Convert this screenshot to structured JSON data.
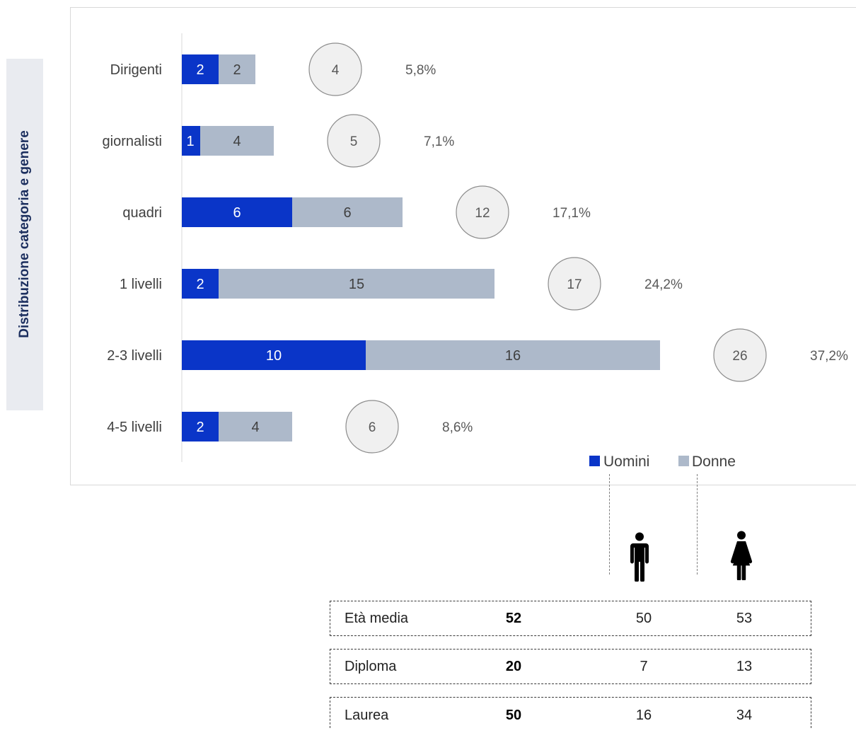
{
  "side_label": "Distribuzione categoria e genere",
  "colors": {
    "uomini": "#0a35c8",
    "donne": "#adb9ca",
    "circle_fill": "#f0f0f0",
    "circle_stroke": "#8c8c8c"
  },
  "icons": {
    "men": "man-icon",
    "women": "woman-icon"
  },
  "chart_data": {
    "type": "bar",
    "orientation": "horizontal",
    "stacked": true,
    "categories": [
      "Dirigenti",
      "giornalisti",
      "quadri",
      "1 livelli",
      "2-3 livelli",
      "4-5 livelli"
    ],
    "series": [
      {
        "name": "Uomini",
        "values": [
          2,
          1,
          6,
          2,
          10,
          2
        ]
      },
      {
        "name": "Donne",
        "values": [
          2,
          4,
          6,
          15,
          16,
          4
        ]
      }
    ],
    "totals": [
      4,
      5,
      12,
      17,
      26,
      6
    ],
    "percentages": [
      "5,8%",
      "7,1%",
      "17,1%",
      "24,2%",
      "37,2%",
      "8,6%"
    ],
    "legend_position": "bottom-right",
    "grid": false
  },
  "stats": [
    {
      "label": "Età media",
      "total": "52",
      "men": "50",
      "women": "53"
    },
    {
      "label": "Diploma",
      "total": "20",
      "men": "7",
      "women": "13"
    },
    {
      "label": "Laurea",
      "total": "50",
      "men": "16",
      "women": "34"
    }
  ]
}
